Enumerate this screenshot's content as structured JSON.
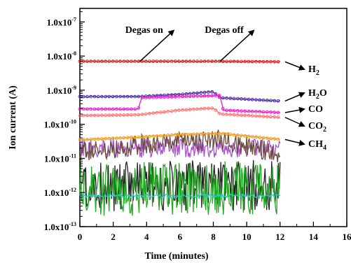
{
  "chart_data": {
    "type": "line",
    "xlabel": "Time (minutes)",
    "ylabel": "Ion current (A)",
    "xlim": [
      0,
      16
    ],
    "ylim": [
      1e-13,
      2.5e-07
    ],
    "y_scale": "log",
    "grid": false,
    "x_ticks": [
      0,
      2,
      4,
      6,
      8,
      10,
      12,
      14,
      16
    ],
    "x_tick_labels": [
      "0",
      "2",
      "4",
      "6",
      "8",
      "10",
      "12",
      "14",
      "16"
    ],
    "y_ticks": [
      {
        "value": 1e-07,
        "label_base": "1.0x10",
        "label_exp": "-7"
      },
      {
        "value": 1e-08,
        "label_base": "1.0x10",
        "label_exp": "-8"
      },
      {
        "value": 1e-09,
        "label_base": "1.0x10",
        "label_exp": "-9"
      },
      {
        "value": 1e-10,
        "label_base": "1.0x10",
        "label_exp": "-10"
      },
      {
        "value": 1e-11,
        "label_base": "1.0x10",
        "label_exp": "-11"
      },
      {
        "value": 1e-12,
        "label_base": "1.0x10",
        "label_exp": "-12"
      },
      {
        "value": 1e-13,
        "label_base": "1.0x10",
        "label_exp": "-13"
      }
    ],
    "annotations": [
      {
        "text": "Degas on",
        "x": 3.6
      },
      {
        "text": "Degas off",
        "x": 8.4
      }
    ],
    "series": [
      {
        "name": "H2",
        "label_main": "H",
        "label_sub": "2",
        "color": "#dd2222",
        "style": "markers",
        "x": [
          0,
          3.5,
          8.4,
          12
        ],
        "y": [
          7e-09,
          7e-09,
          7e-09,
          6.8e-09
        ]
      },
      {
        "name": "H2O",
        "label_main": "H",
        "label_sub": "2",
        "label_tail": "O",
        "color": "#5533aa",
        "style": "markers",
        "x": [
          0,
          3.5,
          6,
          8,
          8.4,
          12
        ],
        "y": [
          6.5e-10,
          6.5e-10,
          7.5e-10,
          9e-10,
          6e-10,
          4.8e-10
        ]
      },
      {
        "name": "CO",
        "label_main": "CO",
        "color": "#ee22cc",
        "style": "markers",
        "x": [
          0,
          3.5,
          3.7,
          8.4,
          8.6,
          12
        ],
        "y": [
          2.8e-10,
          2.8e-10,
          6e-10,
          7e-10,
          2.6e-10,
          2.2e-10
        ]
      },
      {
        "name": "CO2",
        "label_main": "CO",
        "label_sub": "2",
        "color": "#ff7777",
        "style": "markers",
        "x": [
          0,
          3.5,
          6,
          8,
          8.4,
          12
        ],
        "y": [
          1.8e-10,
          1.9e-10,
          2.6e-10,
          3e-10,
          2e-10,
          1.6e-10
        ]
      },
      {
        "name": "CH4",
        "label_main": "CH",
        "label_sub": "4",
        "color": "#f0a020",
        "style": "markers",
        "x": [
          0,
          3.5,
          6,
          8.4,
          12
        ],
        "y": [
          3.5e-11,
          4.2e-11,
          5e-11,
          5.4e-11,
          3.6e-11
        ]
      },
      {
        "name": "",
        "color": "#aa55cc",
        "style": "noisy",
        "jitter": 0.28,
        "x": [
          0,
          12
        ],
        "y": [
          2e-11,
          2e-11
        ]
      },
      {
        "name": "",
        "color": "#6b4a3a",
        "style": "noisy",
        "jitter": 0.3,
        "x": [
          0,
          3.5,
          8.4,
          12
        ],
        "y": [
          1.5e-11,
          2.5e-11,
          3.5e-11,
          1.3e-11
        ]
      },
      {
        "name": "",
        "color": "#222222",
        "style": "noisy",
        "jitter": 0.75,
        "x": [
          0,
          12
        ],
        "y": [
          1.6e-12,
          1.6e-12
        ]
      },
      {
        "name": "",
        "color": "#22aa22",
        "style": "noisy",
        "jitter": 0.8,
        "x": [
          0,
          12
        ],
        "y": [
          1.3e-12,
          1.3e-12
        ]
      },
      {
        "name": "",
        "color": "#22cccc",
        "style": "noisy",
        "jitter": 0.05,
        "x": [
          0,
          12
        ],
        "y": [
          8e-13,
          8e-13
        ]
      }
    ]
  }
}
